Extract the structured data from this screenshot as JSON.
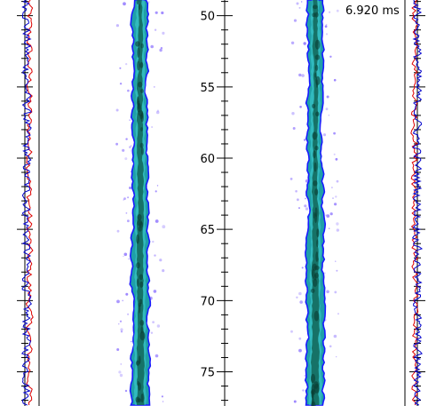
{
  "chart_data": {
    "type": "line",
    "time_label": "6.920 ms",
    "y_axis": {
      "ticks": [
        50,
        55,
        60,
        65,
        70,
        75
      ],
      "tick_labels": [
        "50",
        "55",
        "60",
        "65",
        "70",
        "75"
      ],
      "ylim": [
        48.9,
        77.4
      ],
      "direction": "increasing-downward"
    },
    "panels": [
      {
        "kind": "profile-trace",
        "side": "left",
        "series": [
          {
            "color": "#0000cc"
          },
          {
            "color": "#dd0000"
          }
        ]
      },
      {
        "kind": "jet-image",
        "side": "left-center"
      },
      {
        "kind": "jet-image",
        "side": "right-center"
      },
      {
        "kind": "profile-trace",
        "side": "right",
        "series": [
          {
            "color": "#0000cc"
          },
          {
            "color": "#dd0000"
          }
        ]
      }
    ],
    "grid": false,
    "colors": {
      "jet_core_dark": "#0d5a4a",
      "jet_body": "#1fa0a8",
      "jet_light": "#3fd0d0",
      "jet_edge": "#1a1aff",
      "speckle": "#7a5cff",
      "trace_blue": "#0000cc",
      "trace_red": "#dd0000"
    }
  }
}
